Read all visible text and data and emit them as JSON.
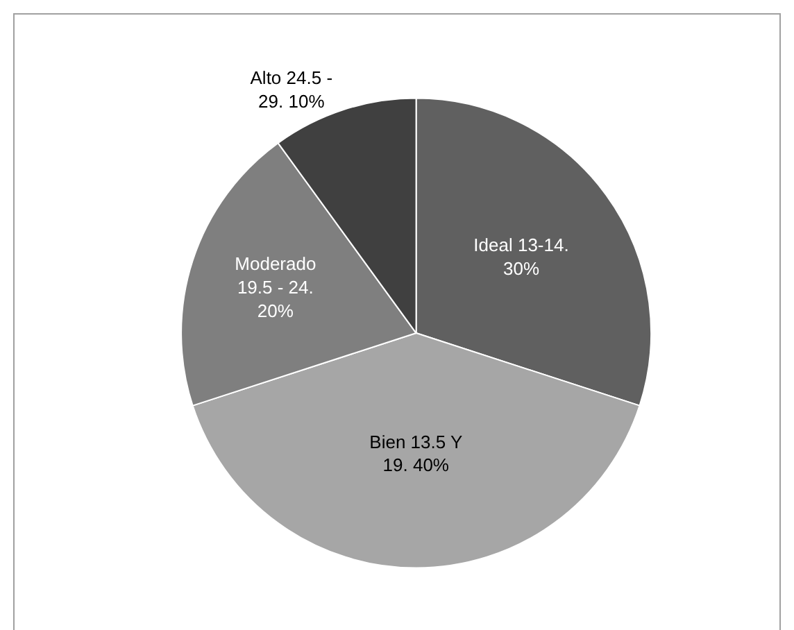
{
  "chart_data": {
    "type": "pie",
    "categories": [
      "Ideal 13-14.",
      "Bien 13.5 Y 19.",
      "Moderado 19.5 - 24.",
      "Alto 24.5 - 29."
    ],
    "values": [
      30,
      40,
      20,
      10
    ],
    "colors": [
      "#606060",
      "#a6a6a6",
      "#7f7f7f",
      "#404040"
    ],
    "value_labels": [
      "30%",
      "40%",
      "20%",
      "10%"
    ],
    "legend": false
  }
}
